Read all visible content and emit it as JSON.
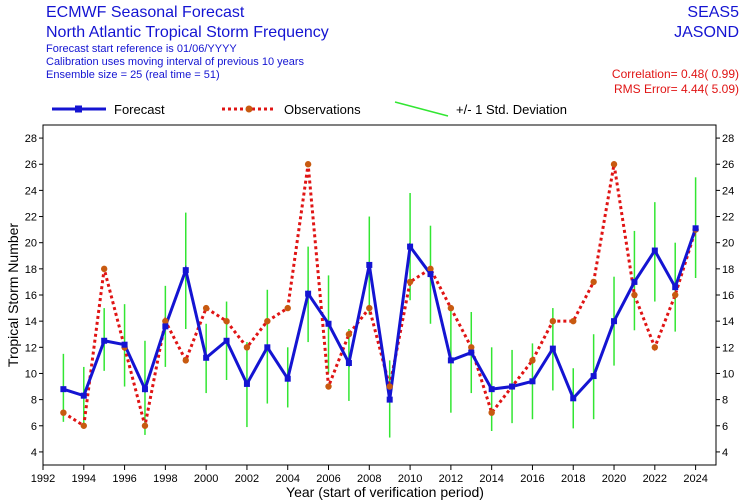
{
  "header": {
    "title": "ECMWF Seasonal Forecast",
    "subtitle": "North Atlantic Tropical Storm Frequency",
    "info": [
      "Forecast start reference is 01/06/YYYY",
      "Calibration uses moving interval of previous 10 years",
      "Ensemble size =  25   (real time = 51)"
    ],
    "system": "SEAS5",
    "season": "JASOND",
    "correlation": "Correlation= 0.48( 0.99)",
    "rms_error": "RMS Error= 4.44( 5.09)"
  },
  "colors": {
    "forecast": "#1414d2",
    "observations": "#e01414",
    "obs_marker": "#c85a10",
    "stddev": "#32e632"
  },
  "chart_data": {
    "type": "line",
    "xlabel": "Year (start of verification period)",
    "ylabel": "Tropical Storm Number",
    "xlim": [
      1992,
      2025
    ],
    "ylim": [
      3,
      29
    ],
    "x_ticks": [
      1992,
      1994,
      1996,
      1998,
      2000,
      2002,
      2004,
      2006,
      2008,
      2010,
      2012,
      2014,
      2016,
      2018,
      2020,
      2022,
      2024
    ],
    "y_ticks": [
      4,
      6,
      8,
      10,
      12,
      14,
      16,
      18,
      20,
      22,
      24,
      26,
      28
    ],
    "legend": [
      "Forecast",
      "Observations",
      "+/- 1 Std. Deviation"
    ],
    "legend_position": "top",
    "grid": false,
    "x": [
      1993,
      1994,
      1995,
      1996,
      1997,
      1998,
      1999,
      2000,
      2001,
      2002,
      2003,
      2004,
      2005,
      2006,
      2007,
      2008,
      2009,
      2010,
      2011,
      2012,
      2013,
      2014,
      2015,
      2016,
      2017,
      2018,
      2019,
      2020,
      2021,
      2022,
      2023,
      2024
    ],
    "series": [
      {
        "name": "Forecast",
        "values": [
          8.8,
          8.3,
          12.5,
          12.2,
          8.8,
          13.6,
          17.9,
          11.2,
          12.5,
          9.2,
          12.0,
          9.6,
          16.1,
          13.8,
          10.8,
          18.3,
          8.0,
          19.7,
          17.6,
          11.0,
          11.6,
          8.8,
          9.0,
          9.4,
          11.9,
          8.1,
          9.8,
          14.0,
          17.0,
          19.4,
          16.6,
          21.1
        ]
      },
      {
        "name": "Observations",
        "values": [
          7,
          6,
          18,
          12,
          6,
          14,
          11,
          15,
          14,
          12,
          14,
          15,
          26,
          9,
          13,
          15,
          9,
          17,
          18,
          15,
          12,
          7,
          9,
          11,
          14,
          14,
          17,
          26,
          16,
          12,
          16,
          21
        ]
      }
    ],
    "std_dev": {
      "name": "+/- 1 Std. Deviation",
      "low": [
        6.3,
        6.2,
        10.2,
        9.0,
        5.3,
        10.5,
        13.4,
        8.5,
        9.5,
        5.9,
        7.7,
        7.4,
        12.4,
        10.0,
        7.9,
        14.5,
        5.1,
        15.6,
        13.8,
        7.0,
        8.5,
        5.6,
        6.2,
        6.5,
        8.7,
        5.8,
        6.5,
        10.6,
        13.3,
        15.5,
        13.2,
        17.3
      ],
      "high": [
        11.5,
        10.5,
        15.0,
        15.3,
        12.5,
        16.7,
        22.3,
        13.8,
        15.5,
        12.4,
        16.4,
        12.0,
        19.7,
        17.5,
        13.4,
        22.0,
        11.0,
        23.8,
        21.3,
        15.1,
        14.7,
        12.0,
        11.8,
        12.3,
        15.0,
        10.4,
        13.0,
        17.4,
        20.9,
        23.1,
        20.0,
        25.0
      ]
    }
  }
}
